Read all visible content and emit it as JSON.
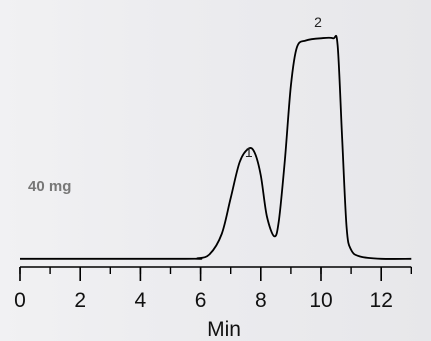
{
  "chart_data": {
    "type": "line",
    "xlabel": "Min",
    "ylabel": "",
    "xlim": [
      0,
      13
    ],
    "xticks": [
      0,
      2,
      4,
      6,
      8,
      10,
      12
    ],
    "x_minor_step": 1,
    "ylim": [
      0,
      100
    ],
    "grid": false,
    "annotation": "40 mg",
    "peaks": [
      {
        "label": "1",
        "x": 7.6
      },
      {
        "label": "2",
        "x": 9.9
      }
    ],
    "series": [
      {
        "points": [
          [
            0,
            1
          ],
          [
            5.5,
            1
          ],
          [
            5.9,
            1.2
          ],
          [
            6.3,
            3
          ],
          [
            6.7,
            12
          ],
          [
            7.0,
            28
          ],
          [
            7.3,
            44
          ],
          [
            7.6,
            50
          ],
          [
            7.8,
            48
          ],
          [
            8.0,
            38
          ],
          [
            8.2,
            20
          ],
          [
            8.45,
            11
          ],
          [
            8.6,
            18
          ],
          [
            8.8,
            45
          ],
          [
            9.0,
            78
          ],
          [
            9.2,
            95
          ],
          [
            9.5,
            98
          ],
          [
            10.0,
            99
          ],
          [
            10.4,
            99
          ],
          [
            10.55,
            96
          ],
          [
            10.7,
            55
          ],
          [
            10.85,
            15
          ],
          [
            11.0,
            5
          ],
          [
            11.3,
            2
          ],
          [
            12,
            1
          ],
          [
            13,
            1
          ]
        ]
      }
    ]
  }
}
